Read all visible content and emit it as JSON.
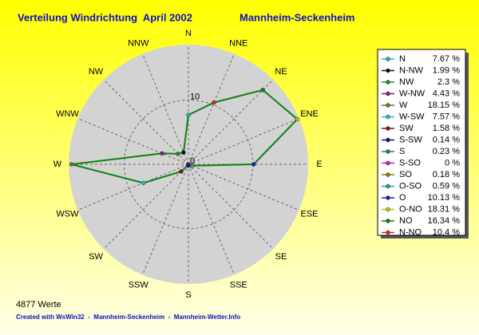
{
  "chart_data": {
    "type": "radar",
    "title": "Verteilung Windrichtung  April 2002",
    "subtitle": "Mannheim-Seckenheim",
    "categories": [
      "N",
      "NNE",
      "NE",
      "ENE",
      "E",
      "ESE",
      "SE",
      "SSE",
      "S",
      "SSW",
      "SW",
      "WSW",
      "W",
      "WNW",
      "NW",
      "NNW"
    ],
    "values": [
      7.67,
      10.4,
      16.34,
      18.31,
      10.13,
      0.59,
      0.18,
      0,
      0.23,
      0.14,
      1.58,
      7.57,
      18.15,
      4.43,
      2.3,
      1.99
    ],
    "value_labels": [
      "7.67 %",
      "10.4 %",
      "16.34 %",
      "18.31 %",
      "10.13 %",
      "0.59 %",
      "0.18 %",
      "0 %",
      "0.23 %",
      "0.14 %",
      "1.58 %",
      "7.57 %",
      "18.15 %",
      "4.43 %",
      "2.3 %",
      "1.99 %"
    ],
    "legend_labels": [
      "N",
      "N-NO",
      "NO",
      "O-NO",
      "O",
      "O-SO",
      "SO",
      "S-SO",
      "S",
      "S-SW",
      "SW",
      "W-SW",
      "W",
      "W-NW",
      "NW",
      "N-NW"
    ],
    "point_colors": [
      "#20b0b0",
      "#e02020",
      "#108010",
      "#c0c000",
      "#1020c0",
      "#20a0a0",
      "#808000",
      "#c020c0",
      "#208080",
      "#101080",
      "#801010",
      "#20c0c0",
      "#608020",
      "#802080",
      "#209020",
      "#101010"
    ],
    "color": "#108010",
    "ylim": [
      0,
      18.6
    ],
    "yticks": [
      0,
      10
    ],
    "grid": true,
    "note": "4877 Werte",
    "footer": "Created with WsWin32  -  Mannheim-Seckenheim  -  Mannheim-Wetter.Info"
  }
}
